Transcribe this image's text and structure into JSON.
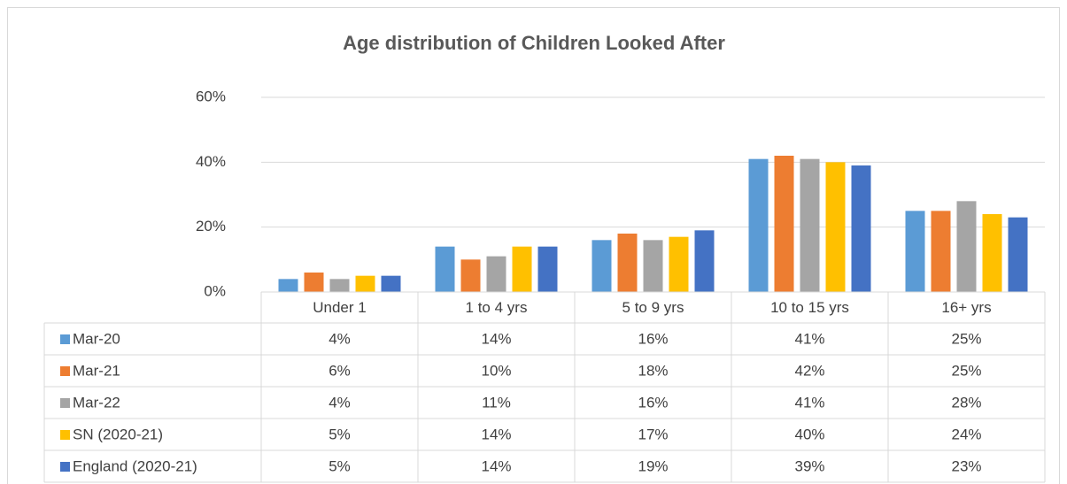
{
  "chart_data": {
    "type": "bar",
    "title": "Age distribution of Children Looked After",
    "categories": [
      "Under 1",
      "1 to 4 yrs",
      "5 to 9 yrs",
      "10 to 15 yrs",
      "16+ yrs"
    ],
    "series": [
      {
        "name": "Mar-20",
        "color": "#5b9bd5",
        "values": [
          4,
          14,
          16,
          41,
          25
        ],
        "value_labels": [
          "4%",
          "14%",
          "16%",
          "41%",
          "25%"
        ]
      },
      {
        "name": "Mar-21",
        "color": "#ed7d31",
        "values": [
          6,
          10,
          18,
          42,
          25
        ],
        "value_labels": [
          "6%",
          "10%",
          "18%",
          "42%",
          "25%"
        ]
      },
      {
        "name": "Mar-22",
        "color": "#a5a5a5",
        "values": [
          4,
          11,
          16,
          41,
          28
        ],
        "value_labels": [
          "4%",
          "11%",
          "16%",
          "41%",
          "28%"
        ]
      },
      {
        "name": "SN (2020-21)",
        "color": "#ffc000",
        "values": [
          5,
          14,
          17,
          40,
          24
        ],
        "value_labels": [
          "5%",
          "14%",
          "17%",
          "40%",
          "24%"
        ]
      },
      {
        "name": "England (2020-21)",
        "color": "#4472c4",
        "values": [
          5,
          14,
          19,
          39,
          23
        ],
        "value_labels": [
          "5%",
          "14%",
          "19%",
          "39%",
          "23%"
        ]
      }
    ],
    "ylim": [
      0,
      60
    ],
    "yticks": [
      {
        "value": 0,
        "label": "0%"
      },
      {
        "value": 20,
        "label": "20%"
      },
      {
        "value": 40,
        "label": "40%"
      },
      {
        "value": 60,
        "label": "60%"
      }
    ],
    "grid": true
  }
}
